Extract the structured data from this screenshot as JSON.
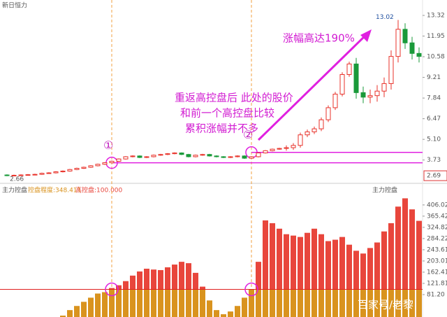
{
  "chart_data": [
    {
      "type": "candlestick",
      "title": "新日恒力",
      "open": [
        2.74,
        2.7,
        2.72,
        2.74,
        2.76,
        2.78,
        2.85,
        2.88,
        2.95,
        3.0,
        3.1,
        3.18,
        3.25,
        3.35,
        3.45,
        3.55,
        3.65,
        3.8,
        3.95,
        4.0,
        3.9,
        3.95,
        4.05,
        4.1,
        4.15,
        4.2,
        4.1,
        3.95,
        4.05,
        4.1,
        4.0,
        3.95,
        3.9,
        3.95,
        4.0,
        3.85,
        3.95,
        4.2,
        4.35,
        4.45,
        4.5,
        4.55,
        4.7,
        5.4,
        5.6,
        5.8,
        6.4,
        7.2,
        8.1,
        9.4,
        10.1,
        8.2,
        7.9,
        8.0,
        8.3,
        8.8,
        10.6,
        12.4,
        11.5,
        10.8
      ],
      "high": [
        2.78,
        2.76,
        2.78,
        2.8,
        2.82,
        2.89,
        2.92,
        2.99,
        3.04,
        3.14,
        3.22,
        3.29,
        3.39,
        3.49,
        3.59,
        3.69,
        3.84,
        3.99,
        4.04,
        4.04,
        3.99,
        4.09,
        4.14,
        4.19,
        4.24,
        4.24,
        4.14,
        4.09,
        4.14,
        4.14,
        4.04,
        3.99,
        3.99,
        4.04,
        4.04,
        3.99,
        4.24,
        4.39,
        4.49,
        4.54,
        4.7,
        4.85,
        5.55,
        5.75,
        5.95,
        6.55,
        7.35,
        8.25,
        9.55,
        10.25,
        10.5,
        8.6,
        8.4,
        8.7,
        9.2,
        11.0,
        13.02,
        12.8,
        11.9,
        11.2
      ],
      "low": [
        2.66,
        2.66,
        2.68,
        2.7,
        2.72,
        2.74,
        2.81,
        2.84,
        2.91,
        2.96,
        3.06,
        3.14,
        3.21,
        3.31,
        3.41,
        3.51,
        3.61,
        3.76,
        3.91,
        3.86,
        3.86,
        3.91,
        4.01,
        4.06,
        4.11,
        4.06,
        3.91,
        3.91,
        4.01,
        3.96,
        3.91,
        3.86,
        3.86,
        3.91,
        3.81,
        3.81,
        3.91,
        4.16,
        4.31,
        4.41,
        4.35,
        4.4,
        4.55,
        5.25,
        5.45,
        5.65,
        6.25,
        7.05,
        7.95,
        9.25,
        7.8,
        7.5,
        7.5,
        7.6,
        7.9,
        8.4,
        10.2,
        11.1,
        10.4,
        10.2
      ],
      "close": [
        2.7,
        2.72,
        2.74,
        2.76,
        2.78,
        2.85,
        2.88,
        2.95,
        3.0,
        3.1,
        3.18,
        3.25,
        3.35,
        3.45,
        3.55,
        3.65,
        3.8,
        3.95,
        4.0,
        3.9,
        3.95,
        4.05,
        4.1,
        4.15,
        4.2,
        4.1,
        3.95,
        4.05,
        4.1,
        4.0,
        3.95,
        3.9,
        3.95,
        4.0,
        3.85,
        3.95,
        4.2,
        4.35,
        4.45,
        4.5,
        4.55,
        4.7,
        5.4,
        5.6,
        5.8,
        6.4,
        7.2,
        8.1,
        9.4,
        10.1,
        8.2,
        7.9,
        8.0,
        8.3,
        8.8,
        10.6,
        12.4,
        11.5,
        10.8,
        10.6
      ],
      "up_color": "#e8322a",
      "down_color": "#1a9a3a",
      "ylim": [
        2.37,
        14.11
      ],
      "yticks": [
        13.32,
        11.95,
        10.58,
        9.21,
        7.84,
        {
          "value": 5.1,
          "label": "5.10"
        },
        6.47,
        3.73
      ],
      "boxed_tick": 2.69,
      "levels": [
        {
          "value": 3.55,
          "index": 15
        },
        {
          "value": 4.24,
          "index": 35
        }
      ],
      "level_color": "#e020e0",
      "markers": [
        {
          "label": "①",
          "index": 15
        },
        {
          "label": "②",
          "index": 35
        }
      ],
      "annotations": [
        "涨幅高达190%",
        "重返高控盘后 此处的股价",
        "和前一个高控盘比较",
        "累积涨幅并不多"
      ]
    },
    {
      "type": "bar",
      "title": "主力控盘",
      "legend": [
        "控盘程度:348.411",
        "高控盘:100.000"
      ],
      "values": [
        0,
        0,
        0,
        0,
        0,
        0,
        0,
        0,
        5,
        25,
        40,
        55,
        70,
        85,
        90,
        105,
        115,
        130,
        150,
        165,
        175,
        172,
        170,
        180,
        190,
        200,
        195,
        160,
        110,
        60,
        25,
        10,
        20,
        40,
        70,
        100,
        200,
        350,
        340,
        320,
        300,
        295,
        290,
        305,
        320,
        300,
        275,
        280,
        290,
        262,
        240,
        230,
        250,
        270,
        310,
        340,
        400,
        430,
        390,
        348.411
      ],
      "threshold": 100,
      "high_color": "#e8463c",
      "low_color": "#d9931e",
      "ylim": [
        0,
        464
      ],
      "yticks": [
        406.02,
        365.42,
        324.82,
        284.22,
        243.61,
        203.01,
        162.41,
        121.81,
        {
          "value": 81.2,
          "label": "81.20"
        }
      ],
      "watermark": "百家号/老黎"
    }
  ]
}
